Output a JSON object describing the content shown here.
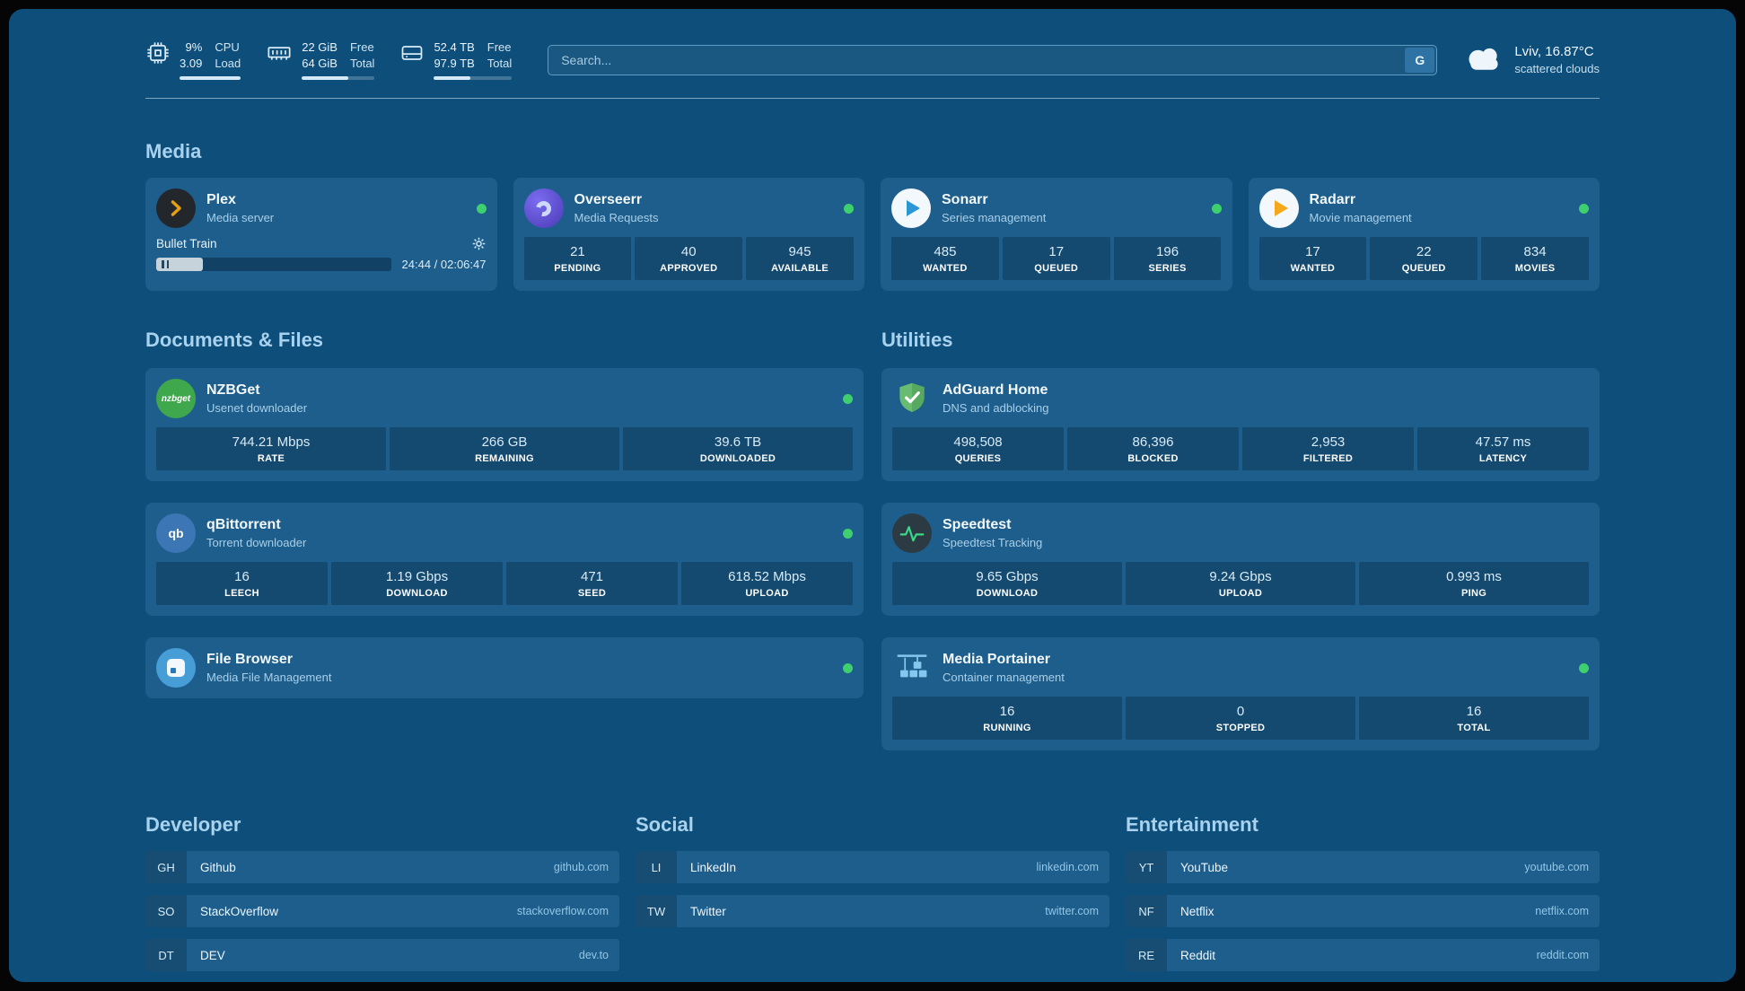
{
  "colors": {
    "background": "#0E4E7B",
    "card": "#1D5E8C",
    "online_status": "#3ECF6E",
    "heading": "#A8D2EE"
  },
  "topbar": {
    "cpu": {
      "icon": "cpu-chip-icon",
      "percent": "9%",
      "load": "3.09",
      "label_top": "CPU",
      "label_bottom": "Load",
      "bar_percent": 100
    },
    "memory": {
      "icon": "memory-stick-icon",
      "free": "22 GiB",
      "total": "64 GiB",
      "label_top": "Free",
      "label_bottom": "Total",
      "bar_percent": 64
    },
    "disk": {
      "icon": "hard-disk-icon",
      "free": "52.4 TB",
      "total": "97.9 TB",
      "label_top": "Free",
      "label_bottom": "Total",
      "bar_percent": 47
    },
    "search": {
      "placeholder": "Search...",
      "engine_button": "G"
    },
    "weather": {
      "icon": "cloud-icon",
      "location": "Lviv, 16.87°C",
      "condition": "scattered clouds"
    }
  },
  "sections": {
    "media": {
      "title": "Media",
      "plex": {
        "icon": "plex-chevron-icon",
        "name": "Plex",
        "subtitle": "Media server",
        "online": true,
        "now_playing": "Bullet Train",
        "time": "24:44 / 02:06:47",
        "progress_percent": 20
      },
      "overseerr": {
        "icon": "overseerr-swirl-icon",
        "name": "Overseerr",
        "subtitle": "Media Requests",
        "online": true,
        "stats": [
          {
            "value": "21",
            "label": "PENDING"
          },
          {
            "value": "40",
            "label": "APPROVED"
          },
          {
            "value": "945",
            "label": "AVAILABLE"
          }
        ]
      },
      "sonarr": {
        "icon": "sonarr-play-icon",
        "name": "Sonarr",
        "subtitle": "Series management",
        "online": true,
        "stats": [
          {
            "value": "485",
            "label": "WANTED"
          },
          {
            "value": "17",
            "label": "QUEUED"
          },
          {
            "value": "196",
            "label": "SERIES"
          }
        ]
      },
      "radarr": {
        "icon": "radarr-play-icon",
        "name": "Radarr",
        "subtitle": "Movie management",
        "online": true,
        "stats": [
          {
            "value": "17",
            "label": "WANTED"
          },
          {
            "value": "22",
            "label": "QUEUED"
          },
          {
            "value": "834",
            "label": "MOVIES"
          }
        ]
      }
    },
    "documents": {
      "title": "Documents & Files",
      "nzbget": {
        "icon": "nzbget-icon",
        "icon_text": "nzbget",
        "name": "NZBGet",
        "subtitle": "Usenet downloader",
        "online": true,
        "stats": [
          {
            "value": "744.21 Mbps",
            "label": "RATE"
          },
          {
            "value": "266 GB",
            "label": "REMAINING"
          },
          {
            "value": "39.6 TB",
            "label": "DOWNLOADED"
          }
        ]
      },
      "qbittorrent": {
        "icon": "qbittorrent-icon",
        "icon_text": "qb",
        "name": "qBittorrent",
        "subtitle": "Torrent downloader",
        "online": true,
        "stats": [
          {
            "value": "16",
            "label": "LEECH"
          },
          {
            "value": "1.19 Gbps",
            "label": "DOWNLOAD"
          },
          {
            "value": "471",
            "label": "SEED"
          },
          {
            "value": "618.52 Mbps",
            "label": "UPLOAD"
          }
        ]
      },
      "filebrowser": {
        "icon": "filebrowser-icon",
        "name": "File Browser",
        "subtitle": "Media File Management",
        "online": true
      }
    },
    "utilities": {
      "title": "Utilities",
      "adguard": {
        "icon": "adguard-shield-icon",
        "name": "AdGuard Home",
        "subtitle": "DNS and adblocking",
        "stats": [
          {
            "value": "498,508",
            "label": "QUERIES"
          },
          {
            "value": "86,396",
            "label": "BLOCKED"
          },
          {
            "value": "2,953",
            "label": "FILTERED"
          },
          {
            "value": "47.57 ms",
            "label": "LATENCY"
          }
        ]
      },
      "speedtest": {
        "icon": "speedtest-pulse-icon",
        "name": "Speedtest",
        "subtitle": "Speedtest Tracking",
        "stats": [
          {
            "value": "9.65 Gbps",
            "label": "DOWNLOAD"
          },
          {
            "value": "9.24 Gbps",
            "label": "UPLOAD"
          },
          {
            "value": "0.993 ms",
            "label": "PING"
          }
        ]
      },
      "portainer": {
        "icon": "portainer-crane-icon",
        "name": "Media Portainer",
        "subtitle": "Container management",
        "online": true,
        "stats": [
          {
            "value": "16",
            "label": "RUNNING"
          },
          {
            "value": "0",
            "label": "STOPPED"
          },
          {
            "value": "16",
            "label": "TOTAL"
          }
        ]
      }
    }
  },
  "bookmarks": {
    "developer": {
      "title": "Developer",
      "items": [
        {
          "abbr": "GH",
          "name": "Github",
          "domain": "github.com"
        },
        {
          "abbr": "SO",
          "name": "StackOverflow",
          "domain": "stackoverflow.com"
        },
        {
          "abbr": "DT",
          "name": "DEV",
          "domain": "dev.to"
        }
      ]
    },
    "social": {
      "title": "Social",
      "items": [
        {
          "abbr": "LI",
          "name": "LinkedIn",
          "domain": "linkedin.com"
        },
        {
          "abbr": "TW",
          "name": "Twitter",
          "domain": "twitter.com"
        }
      ]
    },
    "entertainment": {
      "title": "Entertainment",
      "items": [
        {
          "abbr": "YT",
          "name": "YouTube",
          "domain": "youtube.com"
        },
        {
          "abbr": "NF",
          "name": "Netflix",
          "domain": "netflix.com"
        },
        {
          "abbr": "RE",
          "name": "Reddit",
          "domain": "reddit.com"
        }
      ]
    }
  }
}
